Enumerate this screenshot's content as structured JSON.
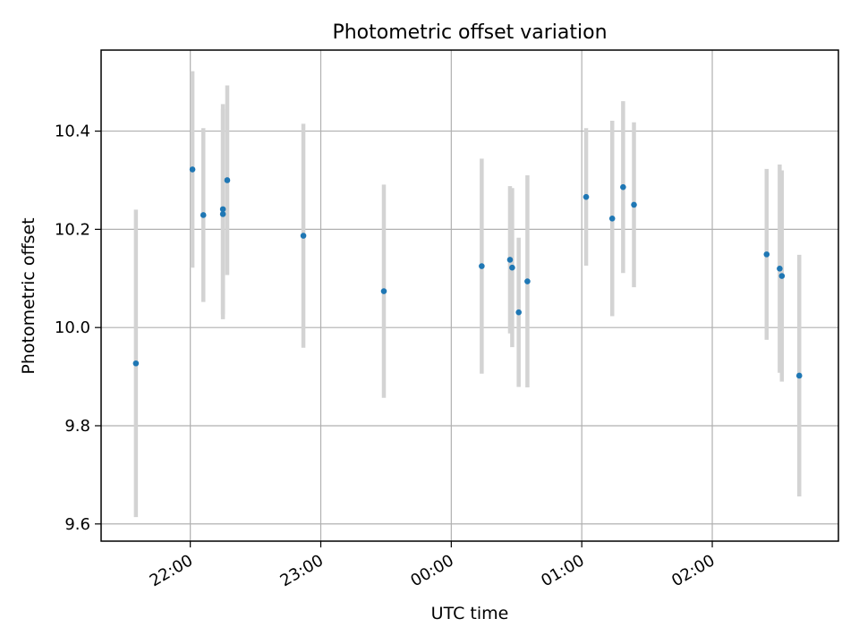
{
  "chart_data": {
    "type": "scatter",
    "title": "Photometric offset variation",
    "xlabel": "UTC time",
    "ylabel": "Photometric offset",
    "x_ticks": [
      "22:00",
      "23:00",
      "00:00",
      "01:00",
      "02:00"
    ],
    "y_ticks": [
      "9.6",
      "9.8",
      "10.0",
      "10.2",
      "10.4"
    ],
    "xlim": [
      "21:19",
      "02:58"
    ],
    "ylim": [
      9.565,
      10.565
    ],
    "grid": true,
    "colors": {
      "point": "#1f77b4",
      "errorbar": "#d3d3d3",
      "grid": "#b0b0b0"
    },
    "points": [
      {
        "x": "21:35",
        "y": 9.927,
        "y_err": 0.313
      },
      {
        "x": "22:01",
        "y": 10.322,
        "y_err": 0.2
      },
      {
        "x": "22:06",
        "y": 10.229,
        "y_err": 0.177
      },
      {
        "x": "22:15",
        "y": 10.231,
        "y_err": 0.214
      },
      {
        "x": "22:15",
        "y": 10.241,
        "y_err": 0.214
      },
      {
        "x": "22:17",
        "y": 10.3,
        "y_err": 0.193
      },
      {
        "x": "22:52",
        "y": 10.187,
        "y_err": 0.228
      },
      {
        "x": "23:29",
        "y": 10.074,
        "y_err": 0.217
      },
      {
        "x": "00:14",
        "y": 10.125,
        "y_err": 0.219
      },
      {
        "x": "00:27",
        "y": 10.138,
        "y_err": 0.15
      },
      {
        "x": "00:28",
        "y": 10.122,
        "y_err": 0.162
      },
      {
        "x": "00:31",
        "y": 10.031,
        "y_err": 0.152
      },
      {
        "x": "00:35",
        "y": 10.094,
        "y_err": 0.216
      },
      {
        "x": "01:02",
        "y": 10.266,
        "y_err": 0.14
      },
      {
        "x": "01:14",
        "y": 10.222,
        "y_err": 0.199
      },
      {
        "x": "01:19",
        "y": 10.286,
        "y_err": 0.175
      },
      {
        "x": "01:24",
        "y": 10.25,
        "y_err": 0.168
      },
      {
        "x": "02:25",
        "y": 10.149,
        "y_err": 0.174
      },
      {
        "x": "02:31",
        "y": 10.12,
        "y_err": 0.212
      },
      {
        "x": "02:32",
        "y": 10.105,
        "y_err": 0.215
      },
      {
        "x": "02:40",
        "y": 9.902,
        "y_err": 0.246
      }
    ]
  }
}
